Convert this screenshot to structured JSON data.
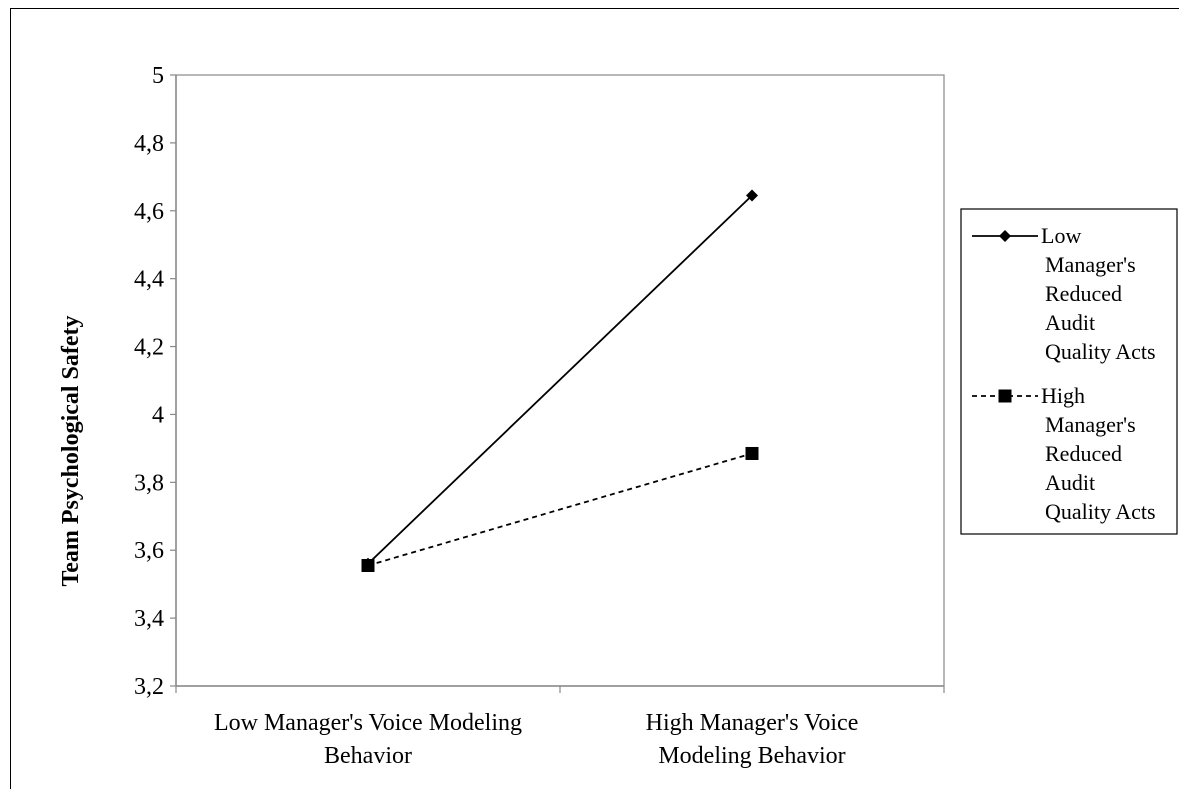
{
  "chart_data": {
    "type": "line",
    "title": "",
    "xlabel": "",
    "ylabel": "Team Psychological Safety",
    "categories": [
      [
        "Low Manager's Voice Modeling",
        "Behavior"
      ],
      [
        "High Manager's Voice",
        "Modeling Behavior"
      ]
    ],
    "ylim": [
      3.2,
      5
    ],
    "yticks": [
      3.2,
      3.4,
      3.6,
      3.8,
      4,
      4.2,
      4.4,
      4.6,
      4.8,
      5
    ],
    "ytick_labels": [
      "3,2",
      "3,4",
      "3,6",
      "3,8",
      "4",
      "4,2",
      "4,4",
      "4,6",
      "4,8",
      "5"
    ],
    "grid": false,
    "legend_position": "right",
    "series": [
      {
        "name": [
          "Low",
          "Manager's",
          "Reduced",
          "Audit",
          "Quality Acts"
        ],
        "values": [
          3.56,
          4.645
        ],
        "line_style": "solid",
        "marker": "diamond",
        "color": "#000000"
      },
      {
        "name": [
          "High",
          "Manager's",
          "Reduced",
          "Audit",
          "Quality Acts"
        ],
        "values": [
          3.555,
          3.885
        ],
        "line_style": "dashed",
        "marker": "square",
        "color": "#000000"
      }
    ]
  }
}
